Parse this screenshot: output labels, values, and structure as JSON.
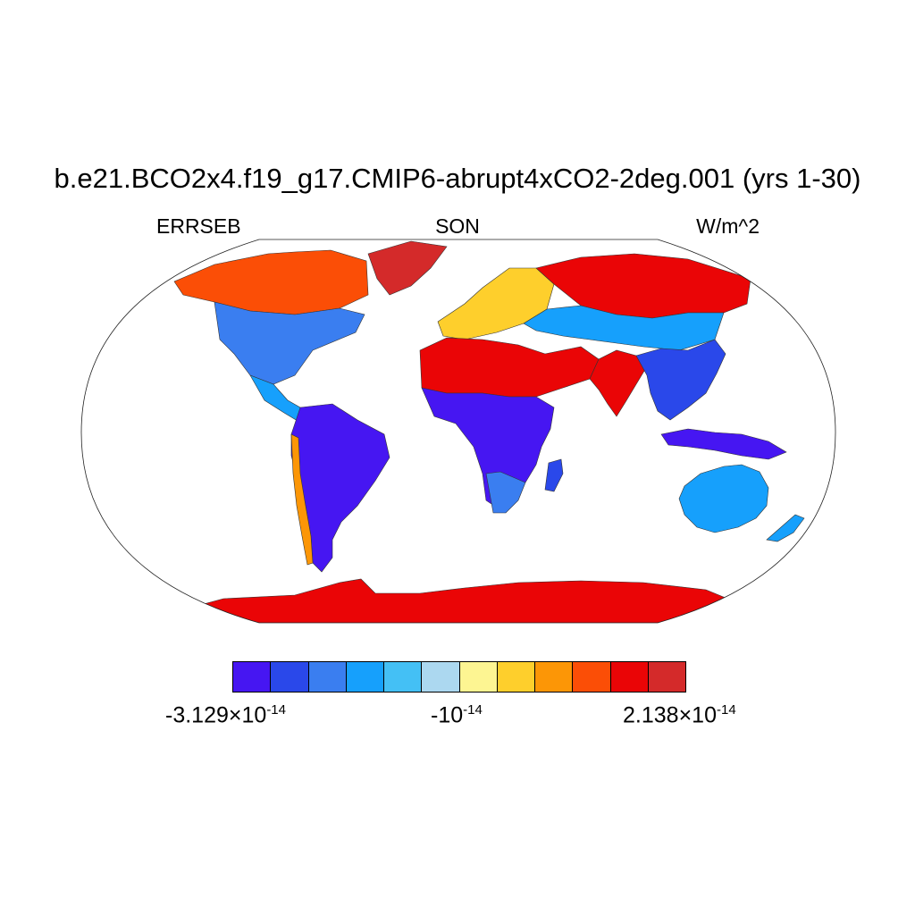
{
  "title": "b.e21.BCO2x4.f19_g17.CMIP6-abrupt4xCO2-2deg.001 (yrs 1-30)",
  "subtitle_left": "ERRSEB",
  "subtitle_center": "SON",
  "subtitle_right": "W/m^2",
  "colorbar": {
    "colors": [
      "#4616f2",
      "#2a48ea",
      "#3a7ef0",
      "#16a0fc",
      "#44c0f5",
      "#acd8f0",
      "#fdf592",
      "#fecf2c",
      "#fc9606",
      "#fb4e06",
      "#ea0506",
      "#d42a2a"
    ],
    "label_min": {
      "mantissa": "-3.129",
      "times": "×",
      "base": "10",
      "exp": "-14"
    },
    "label_mid": {
      "mantissa": "-",
      "times": "",
      "base": "10",
      "exp": "-14"
    },
    "label_max": {
      "mantissa": "2.138",
      "times": "×",
      "base": "10",
      "exp": "-14"
    }
  },
  "map": {
    "projection": "Robinson",
    "regions": [
      {
        "name": "north-america-arctic",
        "level": 9
      },
      {
        "name": "greenland",
        "level": 11
      },
      {
        "name": "north-america-temperate",
        "level": 2
      },
      {
        "name": "central-america",
        "level": 3
      },
      {
        "name": "south-america",
        "level": 0
      },
      {
        "name": "andes",
        "level": 8
      },
      {
        "name": "europe",
        "level": 7
      },
      {
        "name": "siberia",
        "level": 10
      },
      {
        "name": "central-asia",
        "level": 3
      },
      {
        "name": "sahara-arabia",
        "level": 10
      },
      {
        "name": "sub-saharan-africa",
        "level": 0
      },
      {
        "name": "south-africa",
        "level": 2
      },
      {
        "name": "madagascar",
        "level": 1
      },
      {
        "name": "india",
        "level": 10
      },
      {
        "name": "southeast-asia",
        "level": 1
      },
      {
        "name": "maritime-continent",
        "level": 0
      },
      {
        "name": "australia",
        "level": 3
      },
      {
        "name": "new-zealand",
        "level": 3
      },
      {
        "name": "antarctica",
        "level": 10
      }
    ]
  }
}
